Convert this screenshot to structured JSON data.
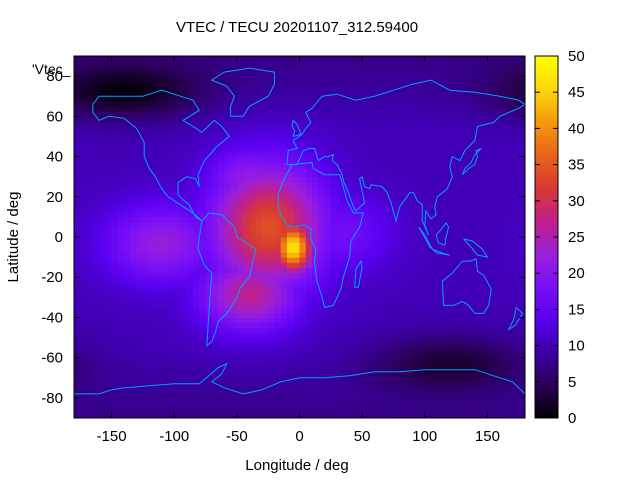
{
  "chart_data": {
    "type": "heatmap",
    "title": "VTEC / TECU 20201107_312.59400",
    "xlabel": "Longitude / deg",
    "ylabel": "Latitude / deg",
    "legend_entry": "'Vtec_",
    "xlim": [
      -180,
      180
    ],
    "ylim": [
      -90,
      90
    ],
    "x_ticks": [
      -150,
      -100,
      -50,
      0,
      50,
      100,
      150
    ],
    "y_ticks": [
      -80,
      -60,
      -40,
      -20,
      0,
      20,
      40,
      60,
      80
    ],
    "colorbar": {
      "range": [
        0,
        50
      ],
      "ticks": [
        0,
        5,
        10,
        15,
        20,
        25,
        30,
        35,
        40,
        45,
        50
      ],
      "palette": [
        "#000000",
        "#2b0058",
        "#3c00a8",
        "#5a00f0",
        "#7a10f8",
        "#9b20d8",
        "#c0208a",
        "#d83a32",
        "#e8641a",
        "#f49a0a",
        "#fcd80a",
        "#ffff00"
      ]
    },
    "grid": false,
    "coastline_color": "#00a0ff",
    "field_features": [
      {
        "name": "equatorial-anomaly-peak",
        "lon": -5,
        "lat": -5,
        "value": 47
      },
      {
        "name": "equatorial-anomaly-core",
        "lon": -25,
        "lat": 5,
        "value": 34
      },
      {
        "name": "south-atlantic-lobe",
        "lon": -40,
        "lat": -28,
        "value": 27
      },
      {
        "name": "west-pacific-lobe",
        "lon": -110,
        "lat": -3,
        "value": 22
      },
      {
        "name": "north-atlantic-lobe",
        "lon": -40,
        "lat": 28,
        "value": 22
      },
      {
        "name": "west-africa-extension",
        "lon": 35,
        "lat": 2,
        "value": 17
      },
      {
        "name": "north-polar-minimum",
        "lon": -140,
        "lat": 72,
        "value": 2
      },
      {
        "name": "south-polar-minimum",
        "lon": 120,
        "lat": -62,
        "value": 3
      }
    ],
    "background_value": 10
  }
}
